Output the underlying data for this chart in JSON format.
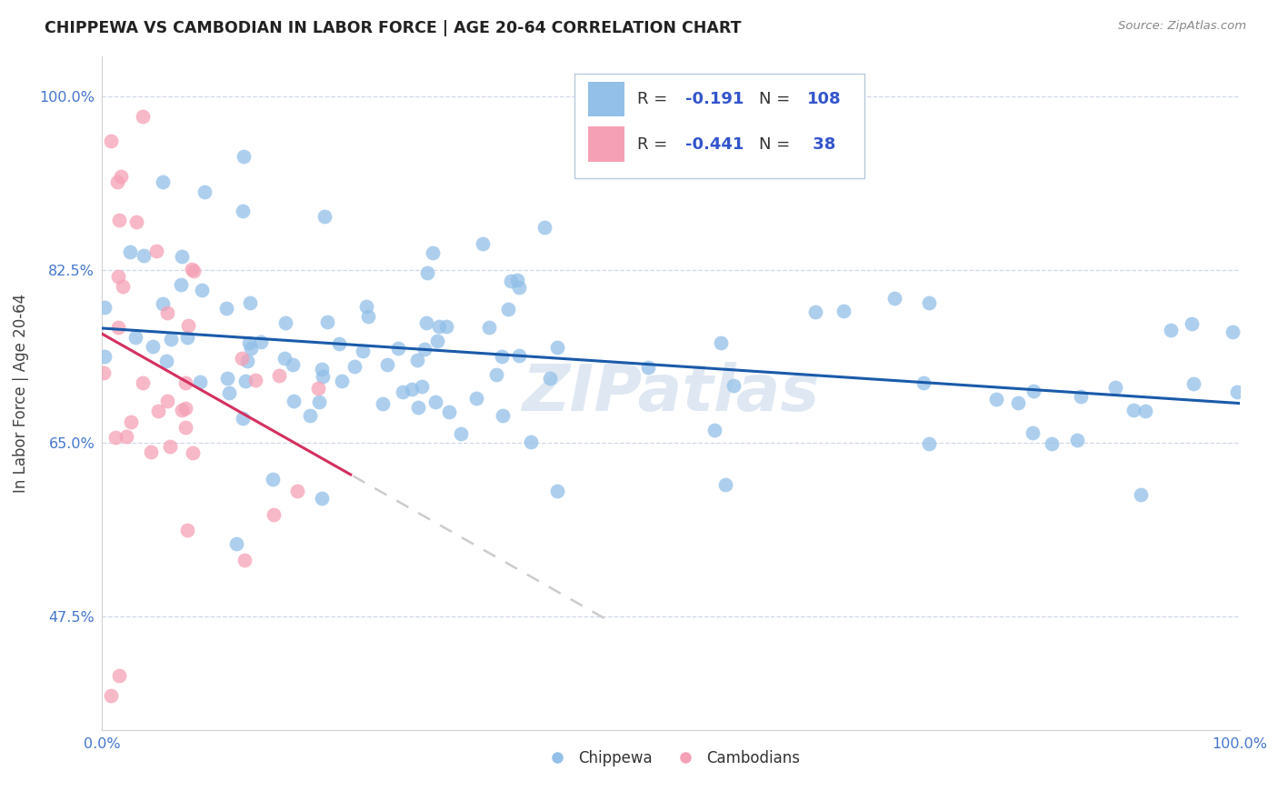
{
  "title": "CHIPPEWA VS CAMBODIAN IN LABOR FORCE | AGE 20-64 CORRELATION CHART",
  "source": "Source: ZipAtlas.com",
  "ylabel": "In Labor Force | Age 20-64",
  "chippewa_color": "#92c0e8",
  "cambodian_color": "#f5a0b5",
  "chippewa_line_color": "#1a5aaa",
  "cambodian_line_color": "#d43060",
  "dashed_line_color": "#cccccc",
  "watermark_text": "ZIPatlas",
  "background_color": "#ffffff",
  "legend_box_color": "#e8eef8",
  "legend_border_color": "#b0c0d8"
}
